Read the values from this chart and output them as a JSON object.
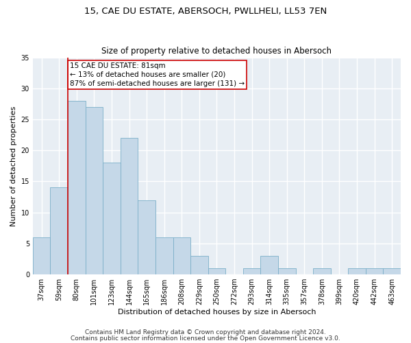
{
  "title1": "15, CAE DU ESTATE, ABERSOCH, PWLLHELI, LL53 7EN",
  "title2": "Size of property relative to detached houses in Abersoch",
  "xlabel": "Distribution of detached houses by size in Abersoch",
  "ylabel": "Number of detached properties",
  "categories": [
    "37sqm",
    "59sqm",
    "80sqm",
    "101sqm",
    "123sqm",
    "144sqm",
    "165sqm",
    "186sqm",
    "208sqm",
    "229sqm",
    "250sqm",
    "272sqm",
    "293sqm",
    "314sqm",
    "335sqm",
    "357sqm",
    "378sqm",
    "399sqm",
    "420sqm",
    "442sqm",
    "463sqm"
  ],
  "values": [
    6,
    14,
    28,
    27,
    18,
    22,
    12,
    6,
    6,
    3,
    1,
    0,
    1,
    3,
    1,
    0,
    1,
    0,
    1,
    1,
    1
  ],
  "bar_color": "#c5d8e8",
  "bar_edge_color": "#7aafc8",
  "highlight_line_color": "#cc0000",
  "highlight_line_index": 1.5,
  "annotation_text": "15 CAE DU ESTATE: 81sqm\n← 13% of detached houses are smaller (20)\n87% of semi-detached houses are larger (131) →",
  "annotation_box_color": "#cc0000",
  "ylim": [
    0,
    35
  ],
  "yticks": [
    0,
    5,
    10,
    15,
    20,
    25,
    30,
    35
  ],
  "footer1": "Contains HM Land Registry data © Crown copyright and database right 2024.",
  "footer2": "Contains public sector information licensed under the Open Government Licence v3.0.",
  "background_color": "#e8eef4",
  "grid_color": "#ffffff",
  "title1_fontsize": 9.5,
  "title2_fontsize": 8.5,
  "xlabel_fontsize": 8,
  "ylabel_fontsize": 8,
  "tick_fontsize": 7,
  "annotation_fontsize": 7.5,
  "footer_fontsize": 6.5
}
